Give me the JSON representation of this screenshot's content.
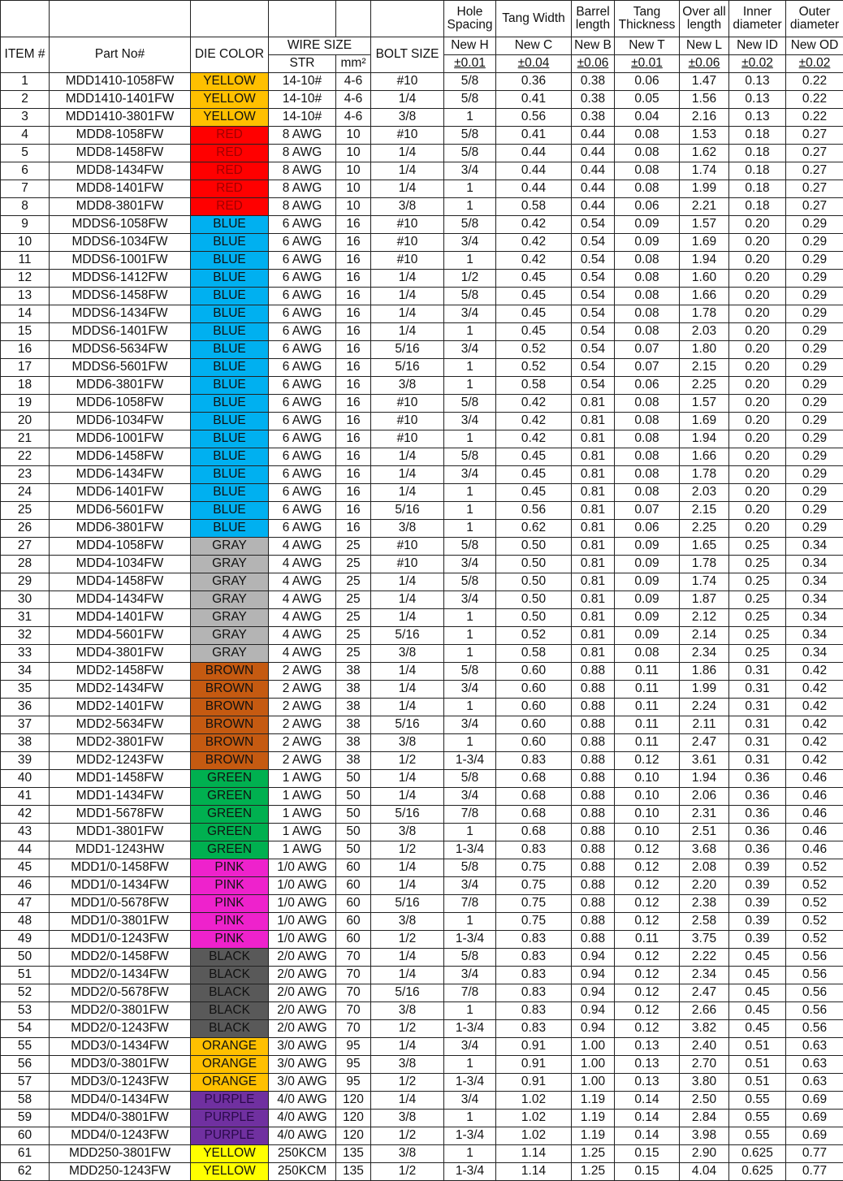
{
  "header": {
    "item": "ITEM #",
    "part": "Part No#",
    "die_color": "DIE COLOR",
    "wire_size": "WIRE SIZE",
    "str": "STR",
    "mm2": "mm²",
    "bolt": "BOLT SIZE",
    "dims": [
      {
        "top": "Hole Spacing",
        "name": "New H",
        "tol": "±0.01"
      },
      {
        "top": "Tang Width",
        "name": "New C",
        "tol": "±0.04"
      },
      {
        "top": "Barrel length",
        "name": "New B",
        "tol": "±0.06"
      },
      {
        "top": "Tang Thickness",
        "name": "New T",
        "tol": "±0.01"
      },
      {
        "top": "Over all length",
        "name": "New L",
        "tol": "±0.06"
      },
      {
        "top": "Inner diameter",
        "name": "New ID",
        "tol": "±0.02"
      },
      {
        "top": "Outer diameter",
        "name": "New OD",
        "tol": "±0.02"
      }
    ]
  },
  "colors": {
    "YELLOW": "#FFC000",
    "RED": "#FF0000",
    "BLUE": "#00B0F0",
    "GRAY": "#B4B4B4",
    "BROWN": "#C55A11",
    "GREEN": "#00B050",
    "PINK": "#EE22CC",
    "BLACK": "#595959",
    "ORANGE": "#FFC000",
    "PURPLE": "#7030A0",
    "YELLOW2": "#FFFF00"
  },
  "rows": [
    [
      "1",
      "MDD1410-1058FW",
      "YELLOW",
      "14-10#",
      "4-6",
      "#10",
      "5/8",
      "0.36",
      "0.38",
      "0.06",
      "1.47",
      "0.13",
      "0.22"
    ],
    [
      "2",
      "MDD1410-1401FW",
      "YELLOW",
      "14-10#",
      "4-6",
      "1/4",
      "5/8",
      "0.41",
      "0.38",
      "0.05",
      "1.56",
      "0.13",
      "0.22"
    ],
    [
      "3",
      "MDD1410-3801FW",
      "YELLOW",
      "14-10#",
      "4-6",
      "3/8",
      "1",
      "0.56",
      "0.38",
      "0.04",
      "2.16",
      "0.13",
      "0.22"
    ],
    [
      "4",
      "MDD8-1058FW",
      "RED",
      "8 AWG",
      "10",
      "#10",
      "5/8",
      "0.41",
      "0.44",
      "0.08",
      "1.53",
      "0.18",
      "0.27"
    ],
    [
      "5",
      "MDD8-1458FW",
      "RED",
      "8 AWG",
      "10",
      "1/4",
      "5/8",
      "0.44",
      "0.44",
      "0.08",
      "1.62",
      "0.18",
      "0.27"
    ],
    [
      "6",
      "MDD8-1434FW",
      "RED",
      "8 AWG",
      "10",
      "1/4",
      "3/4",
      "0.44",
      "0.44",
      "0.08",
      "1.74",
      "0.18",
      "0.27"
    ],
    [
      "7",
      "MDD8-1401FW",
      "RED",
      "8 AWG",
      "10",
      "1/4",
      "1",
      "0.44",
      "0.44",
      "0.08",
      "1.99",
      "0.18",
      "0.27"
    ],
    [
      "8",
      "MDD8-3801FW",
      "RED",
      "8 AWG",
      "10",
      "3/8",
      "1",
      "0.58",
      "0.44",
      "0.06",
      "2.21",
      "0.18",
      "0.27"
    ],
    [
      "9",
      "MDDS6-1058FW",
      "BLUE",
      "6 AWG",
      "16",
      "#10",
      "5/8",
      "0.42",
      "0.54",
      "0.09",
      "1.57",
      "0.20",
      "0.29"
    ],
    [
      "10",
      "MDDS6-1034FW",
      "BLUE",
      "6 AWG",
      "16",
      "#10",
      "3/4",
      "0.42",
      "0.54",
      "0.09",
      "1.69",
      "0.20",
      "0.29"
    ],
    [
      "11",
      "MDDS6-1001FW",
      "BLUE",
      "6 AWG",
      "16",
      "#10",
      "1",
      "0.42",
      "0.54",
      "0.08",
      "1.94",
      "0.20",
      "0.29"
    ],
    [
      "12",
      "MDDS6-1412FW",
      "BLUE",
      "6 AWG",
      "16",
      "1/4",
      "1/2",
      "0.45",
      "0.54",
      "0.08",
      "1.60",
      "0.20",
      "0.29"
    ],
    [
      "13",
      "MDDS6-1458FW",
      "BLUE",
      "6 AWG",
      "16",
      "1/4",
      "5/8",
      "0.45",
      "0.54",
      "0.08",
      "1.66",
      "0.20",
      "0.29"
    ],
    [
      "14",
      "MDDS6-1434FW",
      "BLUE",
      "6 AWG",
      "16",
      "1/4",
      "3/4",
      "0.45",
      "0.54",
      "0.08",
      "1.78",
      "0.20",
      "0.29"
    ],
    [
      "15",
      "MDDS6-1401FW",
      "BLUE",
      "6 AWG",
      "16",
      "1/4",
      "1",
      "0.45",
      "0.54",
      "0.08",
      "2.03",
      "0.20",
      "0.29"
    ],
    [
      "16",
      "MDDS6-5634FW",
      "BLUE",
      "6 AWG",
      "16",
      "5/16",
      "3/4",
      "0.52",
      "0.54",
      "0.07",
      "1.80",
      "0.20",
      "0.29"
    ],
    [
      "17",
      "MDDS6-5601FW",
      "BLUE",
      "6 AWG",
      "16",
      "5/16",
      "1",
      "0.52",
      "0.54",
      "0.07",
      "2.15",
      "0.20",
      "0.29"
    ],
    [
      "18",
      "MDD6-3801FW",
      "BLUE",
      "6 AWG",
      "16",
      "3/8",
      "1",
      "0.58",
      "0.54",
      "0.06",
      "2.25",
      "0.20",
      "0.29"
    ],
    [
      "19",
      "MDD6-1058FW",
      "BLUE",
      "6 AWG",
      "16",
      "#10",
      "5/8",
      "0.42",
      "0.81",
      "0.08",
      "1.57",
      "0.20",
      "0.29"
    ],
    [
      "20",
      "MDD6-1034FW",
      "BLUE",
      "6 AWG",
      "16",
      "#10",
      "3/4",
      "0.42",
      "0.81",
      "0.08",
      "1.69",
      "0.20",
      "0.29"
    ],
    [
      "21",
      "MDD6-1001FW",
      "BLUE",
      "6 AWG",
      "16",
      "#10",
      "1",
      "0.42",
      "0.81",
      "0.08",
      "1.94",
      "0.20",
      "0.29"
    ],
    [
      "22",
      "MDD6-1458FW",
      "BLUE",
      "6 AWG",
      "16",
      "1/4",
      "5/8",
      "0.45",
      "0.81",
      "0.08",
      "1.66",
      "0.20",
      "0.29"
    ],
    [
      "23",
      "MDD6-1434FW",
      "BLUE",
      "6 AWG",
      "16",
      "1/4",
      "3/4",
      "0.45",
      "0.81",
      "0.08",
      "1.78",
      "0.20",
      "0.29"
    ],
    [
      "24",
      "MDD6-1401FW",
      "BLUE",
      "6 AWG",
      "16",
      "1/4",
      "1",
      "0.45",
      "0.81",
      "0.08",
      "2.03",
      "0.20",
      "0.29"
    ],
    [
      "25",
      "MDD6-5601FW",
      "BLUE",
      "6 AWG",
      "16",
      "5/16",
      "1",
      "0.56",
      "0.81",
      "0.07",
      "2.15",
      "0.20",
      "0.29"
    ],
    [
      "26",
      "MDD6-3801FW",
      "BLUE",
      "6 AWG",
      "16",
      "3/8",
      "1",
      "0.62",
      "0.81",
      "0.06",
      "2.25",
      "0.20",
      "0.29"
    ],
    [
      "27",
      "MDD4-1058FW",
      "GRAY",
      "4 AWG",
      "25",
      "#10",
      "5/8",
      "0.50",
      "0.81",
      "0.09",
      "1.65",
      "0.25",
      "0.34"
    ],
    [
      "28",
      "MDD4-1034FW",
      "GRAY",
      "4 AWG",
      "25",
      "#10",
      "3/4",
      "0.50",
      "0.81",
      "0.09",
      "1.78",
      "0.25",
      "0.34"
    ],
    [
      "29",
      "MDD4-1458FW",
      "GRAY",
      "4 AWG",
      "25",
      "1/4",
      "5/8",
      "0.50",
      "0.81",
      "0.09",
      "1.74",
      "0.25",
      "0.34"
    ],
    [
      "30",
      "MDD4-1434FW",
      "GRAY",
      "4 AWG",
      "25",
      "1/4",
      "3/4",
      "0.50",
      "0.81",
      "0.09",
      "1.87",
      "0.25",
      "0.34"
    ],
    [
      "31",
      "MDD4-1401FW",
      "GRAY",
      "4 AWG",
      "25",
      "1/4",
      "1",
      "0.50",
      "0.81",
      "0.09",
      "2.12",
      "0.25",
      "0.34"
    ],
    [
      "32",
      "MDD4-5601FW",
      "GRAY",
      "4 AWG",
      "25",
      "5/16",
      "1",
      "0.52",
      "0.81",
      "0.09",
      "2.14",
      "0.25",
      "0.34"
    ],
    [
      "33",
      "MDD4-3801FW",
      "GRAY",
      "4 AWG",
      "25",
      "3/8",
      "1",
      "0.58",
      "0.81",
      "0.08",
      "2.34",
      "0.25",
      "0.34"
    ],
    [
      "34",
      "MDD2-1458FW",
      "BROWN",
      "2 AWG",
      "38",
      "1/4",
      "5/8",
      "0.60",
      "0.88",
      "0.11",
      "1.86",
      "0.31",
      "0.42"
    ],
    [
      "35",
      "MDD2-1434FW",
      "BROWN",
      "2 AWG",
      "38",
      "1/4",
      "3/4",
      "0.60",
      "0.88",
      "0.11",
      "1.99",
      "0.31",
      "0.42"
    ],
    [
      "36",
      "MDD2-1401FW",
      "BROWN",
      "2 AWG",
      "38",
      "1/4",
      "1",
      "0.60",
      "0.88",
      "0.11",
      "2.24",
      "0.31",
      "0.42"
    ],
    [
      "37",
      "MDD2-5634FW",
      "BROWN",
      "2 AWG",
      "38",
      "5/16",
      "3/4",
      "0.60",
      "0.88",
      "0.11",
      "2.11",
      "0.31",
      "0.42"
    ],
    [
      "38",
      "MDD2-3801FW",
      "BROWN",
      "2 AWG",
      "38",
      "3/8",
      "1",
      "0.60",
      "0.88",
      "0.11",
      "2.47",
      "0.31",
      "0.42"
    ],
    [
      "39",
      "MDD2-1243FW",
      "BROWN",
      "2 AWG",
      "38",
      "1/2",
      "1-3/4",
      "0.83",
      "0.88",
      "0.12",
      "3.61",
      "0.31",
      "0.42"
    ],
    [
      "40",
      "MDD1-1458FW",
      "GREEN",
      "1 AWG",
      "50",
      "1/4",
      "5/8",
      "0.68",
      "0.88",
      "0.10",
      "1.94",
      "0.36",
      "0.46"
    ],
    [
      "41",
      "MDD1-1434FW",
      "GREEN",
      "1 AWG",
      "50",
      "1/4",
      "3/4",
      "0.68",
      "0.88",
      "0.10",
      "2.06",
      "0.36",
      "0.46"
    ],
    [
      "42",
      "MDD1-5678FW",
      "GREEN",
      "1 AWG",
      "50",
      "5/16",
      "7/8",
      "0.68",
      "0.88",
      "0.10",
      "2.31",
      "0.36",
      "0.46"
    ],
    [
      "43",
      "MDD1-3801FW",
      "GREEN",
      "1 AWG",
      "50",
      "3/8",
      "1",
      "0.68",
      "0.88",
      "0.10",
      "2.51",
      "0.36",
      "0.46"
    ],
    [
      "44",
      "MDD1-1243HW",
      "GREEN",
      "1 AWG",
      "50",
      "1/2",
      "1-3/4",
      "0.83",
      "0.88",
      "0.12",
      "3.68",
      "0.36",
      "0.46"
    ],
    [
      "45",
      "MDD1/0-1458FW",
      "PINK",
      "1/0 AWG",
      "60",
      "1/4",
      "5/8",
      "0.75",
      "0.88",
      "0.12",
      "2.08",
      "0.39",
      "0.52"
    ],
    [
      "46",
      "MDD1/0-1434FW",
      "PINK",
      "1/0 AWG",
      "60",
      "1/4",
      "3/4",
      "0.75",
      "0.88",
      "0.12",
      "2.20",
      "0.39",
      "0.52"
    ],
    [
      "47",
      "MDD1/0-5678FW",
      "PINK",
      "1/0 AWG",
      "60",
      "5/16",
      "7/8",
      "0.75",
      "0.88",
      "0.12",
      "2.38",
      "0.39",
      "0.52"
    ],
    [
      "48",
      "MDD1/0-3801FW",
      "PINK",
      "1/0 AWG",
      "60",
      "3/8",
      "1",
      "0.75",
      "0.88",
      "0.12",
      "2.58",
      "0.39",
      "0.52"
    ],
    [
      "49",
      "MDD1/0-1243FW",
      "PINK",
      "1/0 AWG",
      "60",
      "1/2",
      "1-3/4",
      "0.83",
      "0.88",
      "0.11",
      "3.75",
      "0.39",
      "0.52"
    ],
    [
      "50",
      "MDD2/0-1458FW",
      "BLACK",
      "2/0 AWG",
      "70",
      "1/4",
      "5/8",
      "0.83",
      "0.94",
      "0.12",
      "2.22",
      "0.45",
      "0.56"
    ],
    [
      "51",
      "MDD2/0-1434FW",
      "BLACK",
      "2/0 AWG",
      "70",
      "1/4",
      "3/4",
      "0.83",
      "0.94",
      "0.12",
      "2.34",
      "0.45",
      "0.56"
    ],
    [
      "52",
      "MDD2/0-5678FW",
      "BLACK",
      "2/0 AWG",
      "70",
      "5/16",
      "7/8",
      "0.83",
      "0.94",
      "0.12",
      "2.47",
      "0.45",
      "0.56"
    ],
    [
      "53",
      "MDD2/0-3801FW",
      "BLACK",
      "2/0 AWG",
      "70",
      "3/8",
      "1",
      "0.83",
      "0.94",
      "0.12",
      "2.66",
      "0.45",
      "0.56"
    ],
    [
      "54",
      "MDD2/0-1243FW",
      "BLACK",
      "2/0 AWG",
      "70",
      "1/2",
      "1-3/4",
      "0.83",
      "0.94",
      "0.12",
      "3.82",
      "0.45",
      "0.56"
    ],
    [
      "55",
      "MDD3/0-1434FW",
      "ORANGE",
      "3/0 AWG",
      "95",
      "1/4",
      "3/4",
      "0.91",
      "1.00",
      "0.13",
      "2.40",
      "0.51",
      "0.63"
    ],
    [
      "56",
      "MDD3/0-3801FW",
      "ORANGE",
      "3/0 AWG",
      "95",
      "3/8",
      "1",
      "0.91",
      "1.00",
      "0.13",
      "2.70",
      "0.51",
      "0.63"
    ],
    [
      "57",
      "MDD3/0-1243FW",
      "ORANGE",
      "3/0 AWG",
      "95",
      "1/2",
      "1-3/4",
      "0.91",
      "1.00",
      "0.13",
      "3.80",
      "0.51",
      "0.63"
    ],
    [
      "58",
      "MDD4/0-1434FW",
      "PURPLE",
      "4/0 AWG",
      "120",
      "1/4",
      "3/4",
      "1.02",
      "1.19",
      "0.14",
      "2.50",
      "0.55",
      "0.69"
    ],
    [
      "59",
      "MDD4/0-3801FW",
      "PURPLE",
      "4/0 AWG",
      "120",
      "3/8",
      "1",
      "1.02",
      "1.19",
      "0.14",
      "2.84",
      "0.55",
      "0.69"
    ],
    [
      "60",
      "MDD4/0-1243FW",
      "PURPLE",
      "4/0 AWG",
      "120",
      "1/2",
      "1-3/4",
      "1.02",
      "1.19",
      "0.14",
      "3.98",
      "0.55",
      "0.69"
    ],
    [
      "61",
      "MDD250-3801FW",
      "YELLOW",
      "250KCM",
      "135",
      "3/8",
      "1",
      "1.14",
      "1.25",
      "0.15",
      "2.90",
      "0.625",
      "0.77"
    ],
    [
      "62",
      "MDD250-1243FW",
      "YELLOW",
      "250KCM",
      "135",
      "1/2",
      "1-3/4",
      "1.14",
      "1.25",
      "0.15",
      "4.04",
      "0.625",
      "0.77"
    ]
  ]
}
